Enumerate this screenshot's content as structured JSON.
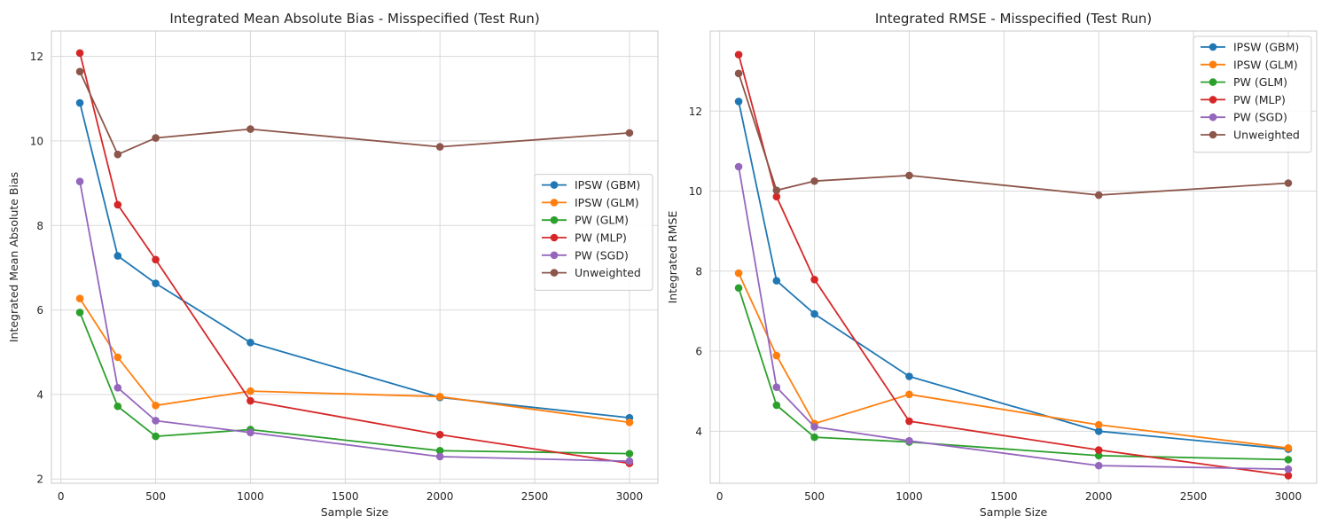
{
  "chart_data": [
    {
      "type": "line",
      "title": "Integrated Mean Absolute Bias - Misspecified (Test Run)",
      "xlabel": "Sample Size",
      "ylabel": "Integrated Mean Absolute Bias",
      "xlim": [
        -50,
        3150
      ],
      "ylim": [
        1.9,
        12.6
      ],
      "xticks": [
        0,
        500,
        1000,
        1500,
        2000,
        2500,
        3000
      ],
      "yticks": [
        2,
        4,
        6,
        8,
        10,
        12
      ],
      "grid": true,
      "legend_position": "center-right",
      "x": [
        100,
        300,
        500,
        1000,
        2000,
        3000
      ],
      "series": [
        {
          "name": "IPSW (GBM)",
          "color": "#1f77b4",
          "values": [
            10.9,
            7.28,
            6.63,
            5.23,
            3.93,
            3.45
          ]
        },
        {
          "name": "IPSW (GLM)",
          "color": "#ff7f0e",
          "values": [
            6.27,
            4.88,
            3.74,
            4.08,
            3.95,
            3.34
          ]
        },
        {
          "name": "PW (GLM)",
          "color": "#2ca02c",
          "values": [
            5.94,
            3.72,
            3.01,
            3.17,
            2.67,
            2.6
          ]
        },
        {
          "name": "PW (MLP)",
          "color": "#d62728",
          "values": [
            12.08,
            8.49,
            7.19,
            3.85,
            3.05,
            2.37
          ]
        },
        {
          "name": "PW (SGD)",
          "color": "#9467bd",
          "values": [
            9.04,
            4.16,
            3.38,
            3.1,
            2.53,
            2.42
          ]
        },
        {
          "name": "Unweighted",
          "color": "#8c564b",
          "values": [
            11.64,
            9.68,
            10.07,
            10.28,
            9.86,
            10.19
          ]
        }
      ]
    },
    {
      "type": "line",
      "title": "Integrated RMSE - Misspecified (Test Run)",
      "xlabel": "Sample Size",
      "ylabel": "Integrated RMSE",
      "xlim": [
        -50,
        3150
      ],
      "ylim": [
        2.7,
        14.0
      ],
      "xticks": [
        0,
        500,
        1000,
        1500,
        2000,
        2500,
        3000
      ],
      "yticks": [
        4,
        6,
        8,
        10,
        12
      ],
      "grid": true,
      "legend_position": "top-right",
      "x": [
        100,
        300,
        500,
        1000,
        2000,
        3000
      ],
      "series": [
        {
          "name": "IPSW (GBM)",
          "color": "#1f77b4",
          "values": [
            12.24,
            7.76,
            6.93,
            5.37,
            4.0,
            3.55
          ]
        },
        {
          "name": "IPSW (GLM)",
          "color": "#ff7f0e",
          "values": [
            7.95,
            5.89,
            4.19,
            4.92,
            4.16,
            3.58
          ]
        },
        {
          "name": "PW (GLM)",
          "color": "#2ca02c",
          "values": [
            7.58,
            4.65,
            3.85,
            3.73,
            3.39,
            3.29
          ]
        },
        {
          "name": "PW (MLP)",
          "color": "#d62728",
          "values": [
            13.41,
            9.86,
            7.79,
            4.25,
            3.53,
            2.89
          ]
        },
        {
          "name": "PW (SGD)",
          "color": "#9467bd",
          "values": [
            10.61,
            5.1,
            4.11,
            3.76,
            3.14,
            3.05
          ]
        },
        {
          "name": "Unweighted",
          "color": "#8c564b",
          "values": [
            12.94,
            10.02,
            10.25,
            10.39,
            9.9,
            10.2
          ]
        }
      ]
    }
  ]
}
